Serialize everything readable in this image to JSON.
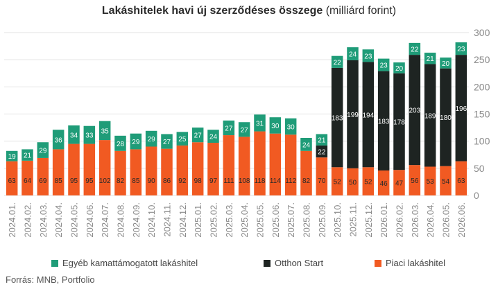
{
  "title_bold": "Lakáshitelek havi új szerződéses összege",
  "title_rest": " (milliárd forint)",
  "source": "Forrás: MNB, Portfolio",
  "colors": {
    "piaci": "#f15a22",
    "otthon": "#1e2422",
    "egyeb": "#1f9c78",
    "grid": "#e3e3e3",
    "axis_text": "#8a8a8a"
  },
  "legend": [
    {
      "label": "Egyéb kamattámogatott lakáshitel",
      "color": "#1f9c78"
    },
    {
      "label": "Otthon Start",
      "color": "#1e2422"
    },
    {
      "label": "Piaci lakáshitel",
      "color": "#f15a22"
    }
  ],
  "chart_data": {
    "type": "bar",
    "stacked": true,
    "categories": [
      "2024.01.",
      "2024.02.",
      "2024.03.",
      "2024.04.",
      "2024.05.",
      "2024.06.",
      "2024.07.",
      "2024.08.",
      "2024.09.",
      "2024.10.",
      "2024.11.",
      "2024.12.",
      "2025.01.",
      "2025.02.",
      "2025.03.",
      "2025.04.",
      "2025.05.",
      "2025.06.",
      "2025.07.",
      "2025.08.",
      "2025.09.",
      "2025.10.",
      "2025.11.",
      "2025.12.",
      "2026.01.",
      "2026.02.",
      "2026.03.",
      "2026.04.",
      "2026.05.",
      "2026.06."
    ],
    "series": [
      {
        "name": "Piaci lakáshitel",
        "color": "#f15a22",
        "values": [
          63,
          64,
          69,
          85,
          95,
          95,
          102,
          82,
          85,
          90,
          86,
          92,
          98,
          97,
          111,
          108,
          118,
          114,
          112,
          82,
          70,
          52,
          50,
          52,
          46,
          47,
          56,
          53,
          54,
          63
        ]
      },
      {
        "name": "Otthon Start",
        "color": "#1e2422",
        "values": [
          null,
          null,
          null,
          null,
          null,
          null,
          null,
          null,
          null,
          null,
          null,
          null,
          null,
          null,
          null,
          null,
          null,
          null,
          null,
          null,
          22,
          183,
          199,
          194,
          183,
          178,
          203,
          189,
          180,
          196
        ]
      },
      {
        "name": "Egyéb kamattámogatott lakáshitel",
        "color": "#1f9c78",
        "values": [
          19,
          21,
          29,
          36,
          34,
          33,
          35,
          28,
          29,
          29,
          27,
          25,
          27,
          24,
          27,
          27,
          31,
          30,
          30,
          24,
          21,
          22,
          24,
          23,
          23,
          20,
          22,
          21,
          20,
          23
        ]
      }
    ],
    "y_axis_side": "right",
    "ylim": [
      0,
      300
    ],
    "yticks": [
      0,
      50,
      100,
      150,
      200,
      250,
      300
    ],
    "grid": true,
    "legend_position": "bottom"
  }
}
